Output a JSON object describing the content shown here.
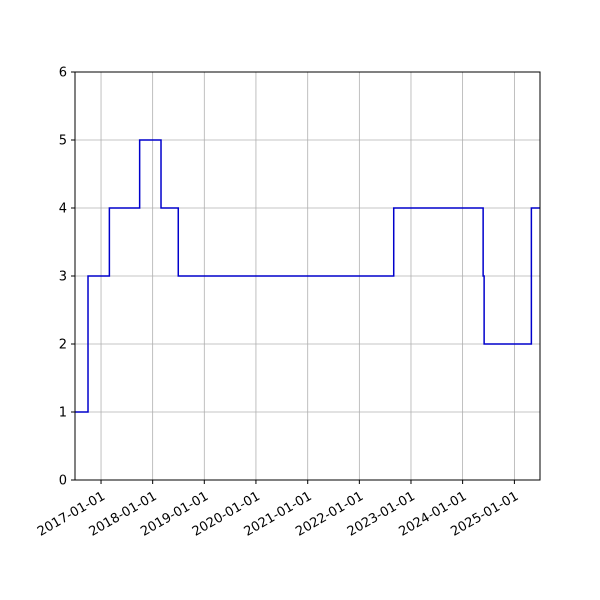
{
  "chart_data": {
    "type": "line",
    "step": "post",
    "title": "",
    "xlabel": "",
    "ylabel": "",
    "grid": true,
    "xlim": [
      "2016-07-01",
      "2025-07-01"
    ],
    "ylim": [
      0,
      6
    ],
    "yticks": [
      0,
      1,
      2,
      3,
      4,
      5,
      6
    ],
    "xticks": [
      "2017-01-01",
      "2018-01-01",
      "2019-01-01",
      "2020-01-01",
      "2021-01-01",
      "2022-01-01",
      "2023-01-01",
      "2024-01-01",
      "2025-01-01"
    ],
    "series": [
      {
        "color": "#0000cc",
        "x": [
          "2016-07-01",
          "2016-10-01",
          "2017-03-01",
          "2017-09-01",
          "2017-10-01",
          "2018-03-01",
          "2018-07-01",
          "2022-09-01",
          "2024-05-25",
          "2024-06-01",
          "2025-05-01",
          "2025-07-01"
        ],
        "y": [
          1,
          3,
          4,
          4,
          5,
          4,
          3,
          4,
          3,
          2,
          4,
          4
        ]
      }
    ]
  }
}
